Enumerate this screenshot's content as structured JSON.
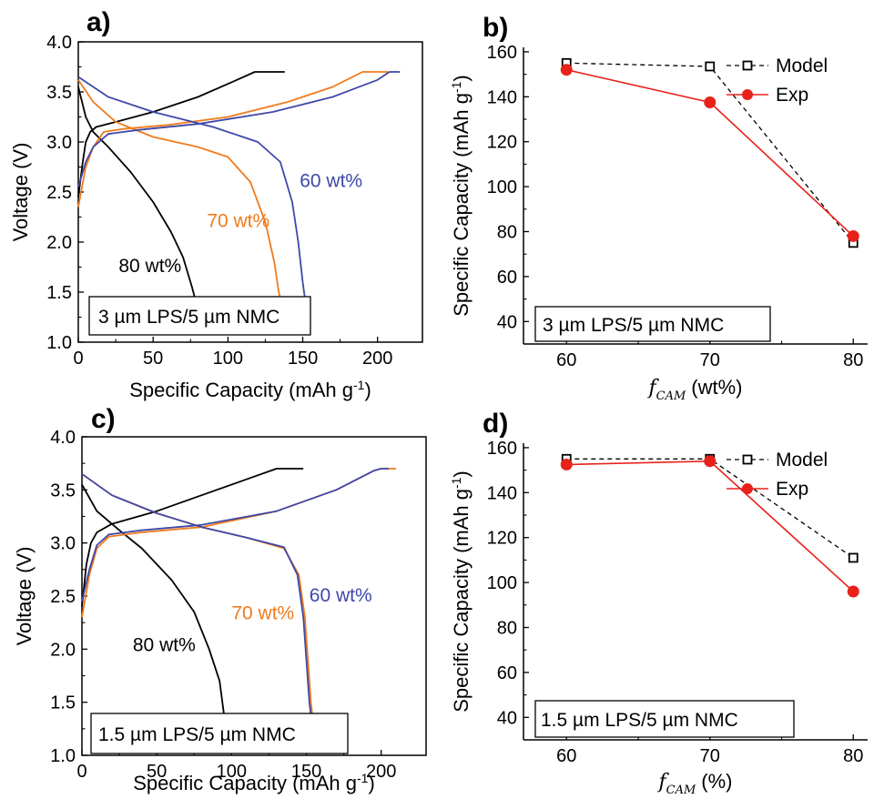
{
  "chart_data": [
    {
      "panel": "a)",
      "type": "line",
      "xlabel": "Specific Capacity (mAh g",
      "xlabel_sup": "-1",
      "xlabel_end": ")",
      "ylabel": "Voltage (V)",
      "xlim": [
        0,
        230
      ],
      "ylim": [
        1.0,
        4.0
      ],
      "xticks": [
        0,
        50,
        100,
        150,
        200
      ],
      "yticks": [
        1.0,
        1.5,
        2.0,
        2.5,
        3.0,
        3.5,
        4.0
      ],
      "box_label": "3 µm LPS/5 µm NMC",
      "grid": false,
      "series": [
        {
          "name": "80 wt%",
          "color": "#000000",
          "label_x": 27,
          "label_y": 1.7,
          "charge": [
            [
              0,
              2.45
            ],
            [
              3,
              2.8
            ],
            [
              5,
              3.0
            ],
            [
              8,
              3.1
            ],
            [
              12,
              3.15
            ],
            [
              25,
              3.2
            ],
            [
              50,
              3.3
            ],
            [
              80,
              3.45
            ],
            [
              100,
              3.58
            ],
            [
              118,
              3.7
            ],
            [
              138,
              3.7
            ]
          ],
          "discharge": [
            [
              0,
              3.55
            ],
            [
              5,
              3.25
            ],
            [
              10,
              3.1
            ],
            [
              20,
              2.95
            ],
            [
              35,
              2.7
            ],
            [
              50,
              2.4
            ],
            [
              62,
              2.1
            ],
            [
              70,
              1.85
            ],
            [
              76,
              1.55
            ],
            [
              79,
              1.38
            ]
          ]
        },
        {
          "name": "70 wt%",
          "color": "#f07b1d",
          "label_x": 86,
          "label_y": 2.15,
          "charge": [
            [
              0,
              2.35
            ],
            [
              5,
              2.75
            ],
            [
              10,
              2.95
            ],
            [
              17,
              3.1
            ],
            [
              30,
              3.13
            ],
            [
              60,
              3.17
            ],
            [
              100,
              3.25
            ],
            [
              140,
              3.4
            ],
            [
              170,
              3.55
            ],
            [
              190,
              3.7
            ],
            [
              207,
              3.7
            ]
          ],
          "discharge": [
            [
              0,
              3.62
            ],
            [
              10,
              3.4
            ],
            [
              25,
              3.2
            ],
            [
              50,
              3.05
            ],
            [
              80,
              2.95
            ],
            [
              100,
              2.85
            ],
            [
              115,
              2.6
            ],
            [
              125,
              2.2
            ],
            [
              131,
              1.8
            ],
            [
              134,
              1.5
            ],
            [
              136,
              1.38
            ]
          ]
        },
        {
          "name": "60 wt%",
          "color": "#3f48a8",
          "label_x": 148,
          "label_y": 2.55,
          "charge": [
            [
              0,
              2.55
            ],
            [
              5,
              2.8
            ],
            [
              10,
              2.95
            ],
            [
              20,
              3.08
            ],
            [
              40,
              3.12
            ],
            [
              80,
              3.18
            ],
            [
              130,
              3.3
            ],
            [
              170,
              3.45
            ],
            [
              200,
              3.62
            ],
            [
              208,
              3.7
            ],
            [
              215,
              3.7
            ]
          ],
          "discharge": [
            [
              0,
              3.65
            ],
            [
              20,
              3.45
            ],
            [
              50,
              3.3
            ],
            [
              90,
              3.15
            ],
            [
              120,
              3.0
            ],
            [
              135,
              2.8
            ],
            [
              143,
              2.4
            ],
            [
              147,
              2.0
            ],
            [
              150,
              1.6
            ],
            [
              152,
              1.38
            ]
          ]
        }
      ]
    },
    {
      "panel": "b)",
      "type": "line",
      "xlabel_var": "f",
      "xlabel_sub": "CAM",
      "xlabel_unit": "(wt%)",
      "ylabel": "Specific Capacity (mAh g",
      "ylabel_sup": "-1",
      "ylabel_end": ")",
      "xlim": [
        57,
        81
      ],
      "ylim": [
        30,
        162
      ],
      "xticks": [
        60,
        70,
        80
      ],
      "yticks": [
        40,
        60,
        80,
        100,
        120,
        140,
        160
      ],
      "box_label": "3 µm LPS/5 µm NMC",
      "grid": false,
      "series": [
        {
          "name": "Model",
          "color": "#000000",
          "x": [
            60,
            70,
            80
          ],
          "values": [
            155,
            153.5,
            75
          ]
        },
        {
          "name": "Exp",
          "color": "#e8221a",
          "x": [
            60,
            70,
            80
          ],
          "values": [
            152,
            137.5,
            78
          ]
        }
      ]
    },
    {
      "panel": "c)",
      "type": "line",
      "xlabel": "Specific Capacity (mAh g",
      "xlabel_sup": "-1",
      "xlabel_end": ")",
      "ylabel": "Voltage (V)",
      "xlim": [
        0,
        230
      ],
      "ylim": [
        1.0,
        4.0
      ],
      "xticks": [
        0,
        50,
        100,
        150,
        200
      ],
      "yticks": [
        1.0,
        1.5,
        2.0,
        2.5,
        3.0,
        3.5,
        4.0
      ],
      "box_label": "1.5 µm LPS/5 µm NMC",
      "grid": false,
      "series": [
        {
          "name": "80 wt%",
          "color": "#000000",
          "label_x": 34,
          "label_y": 1.98,
          "charge": [
            [
              0,
              2.4
            ],
            [
              3,
              2.8
            ],
            [
              6,
              3.0
            ],
            [
              10,
              3.1
            ],
            [
              20,
              3.18
            ],
            [
              50,
              3.3
            ],
            [
              80,
              3.45
            ],
            [
              110,
              3.6
            ],
            [
              130,
              3.7
            ],
            [
              148,
              3.7
            ]
          ],
          "discharge": [
            [
              0,
              3.55
            ],
            [
              10,
              3.3
            ],
            [
              25,
              3.12
            ],
            [
              40,
              2.95
            ],
            [
              60,
              2.65
            ],
            [
              75,
              2.35
            ],
            [
              85,
              2.0
            ],
            [
              92,
              1.7
            ],
            [
              95,
              1.38
            ]
          ]
        },
        {
          "name": "70 wt%",
          "color": "#f07b1d",
          "label_x": 100,
          "label_y": 2.28,
          "charge": [
            [
              0,
              2.3
            ],
            [
              5,
              2.7
            ],
            [
              10,
              2.95
            ],
            [
              18,
              3.06
            ],
            [
              40,
              3.1
            ],
            [
              80,
              3.15
            ],
            [
              130,
              3.3
            ],
            [
              170,
              3.5
            ],
            [
              195,
              3.68
            ],
            [
              200,
              3.7
            ],
            [
              210,
              3.7
            ]
          ],
          "discharge": [
            [
              0,
              3.65
            ],
            [
              20,
              3.45
            ],
            [
              50,
              3.28
            ],
            [
              80,
              3.15
            ],
            [
              110,
              3.05
            ],
            [
              135,
              2.95
            ],
            [
              145,
              2.7
            ],
            [
              149,
              2.3
            ],
            [
              151,
              1.9
            ],
            [
              153,
              1.5
            ],
            [
              154,
              1.38
            ]
          ]
        },
        {
          "name": "60 wt%",
          "color": "#3f48a8",
          "label_x": 152,
          "label_y": 2.45,
          "charge": [
            [
              0,
              2.45
            ],
            [
              5,
              2.75
            ],
            [
              10,
              2.98
            ],
            [
              18,
              3.08
            ],
            [
              40,
              3.12
            ],
            [
              80,
              3.17
            ],
            [
              130,
              3.3
            ],
            [
              170,
              3.5
            ],
            [
              195,
              3.68
            ],
            [
              200,
              3.7
            ],
            [
              205,
              3.7
            ]
          ],
          "discharge": [
            [
              0,
              3.65
            ],
            [
              20,
              3.45
            ],
            [
              50,
              3.28
            ],
            [
              80,
              3.15
            ],
            [
              110,
              3.05
            ],
            [
              135,
              2.96
            ],
            [
              144,
              2.7
            ],
            [
              148,
              2.3
            ],
            [
              150,
              1.9
            ],
            [
              152,
              1.5
            ],
            [
              153,
              1.38
            ]
          ]
        }
      ]
    },
    {
      "panel": "d)",
      "type": "line",
      "xlabel_var": "f",
      "xlabel_sub": "CAM",
      "xlabel_unit": "(%)",
      "ylabel": "Specific Capacity (mAh g",
      "ylabel_sup": "-1",
      "ylabel_end": ")",
      "xlim": [
        57,
        81
      ],
      "ylim": [
        30,
        162
      ],
      "xticks": [
        60,
        70,
        80
      ],
      "yticks": [
        40,
        60,
        80,
        100,
        120,
        140,
        160
      ],
      "box_label": "1.5 µm LPS/5 µm NMC",
      "grid": false,
      "series": [
        {
          "name": "Model",
          "color": "#000000",
          "x": [
            60,
            70,
            80
          ],
          "values": [
            155,
            155,
            111
          ]
        },
        {
          "name": "Exp",
          "color": "#e8221a",
          "x": [
            60,
            70,
            80
          ],
          "values": [
            152.5,
            154,
            96
          ]
        }
      ]
    }
  ]
}
